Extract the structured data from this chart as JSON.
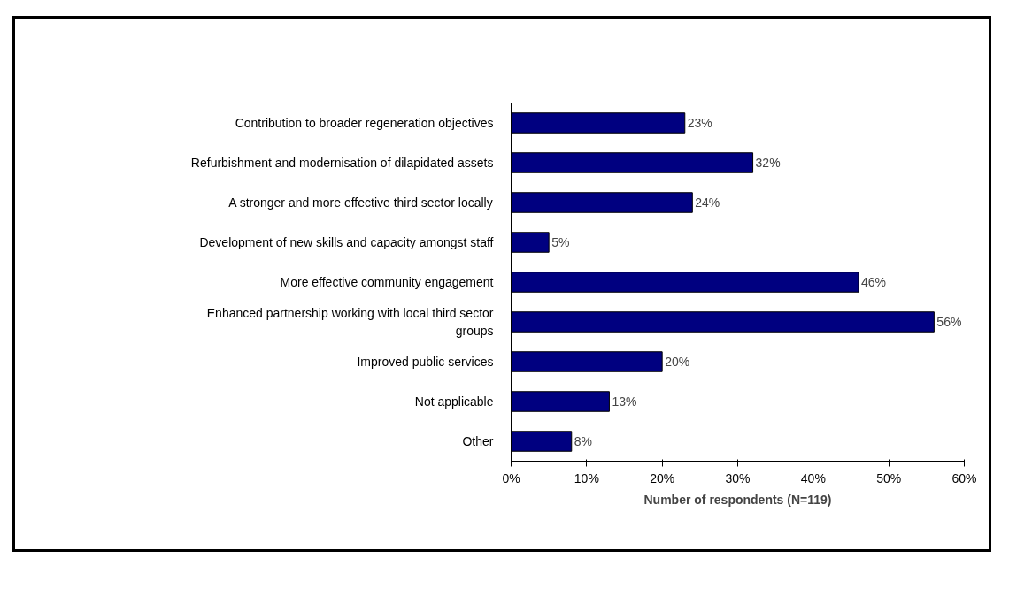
{
  "chart_data": {
    "type": "bar",
    "orientation": "horizontal",
    "categories": [
      "Contribution to broader regeneration objectives",
      "Refurbishment and modernisation of dilapidated assets",
      "A stronger and more effective third sector locally",
      "Development of new skills and capacity amongst staff",
      "More effective community engagement",
      "Enhanced partnership working with local third sector groups",
      "Improved public services",
      "Not applicable",
      "Other"
    ],
    "values": [
      23,
      32,
      24,
      5,
      46,
      56,
      20,
      13,
      8
    ],
    "value_labels": [
      "23%",
      "32%",
      "24%",
      "5%",
      "46%",
      "56%",
      "20%",
      "13%",
      "8%"
    ],
    "color": "#000080",
    "xlabel": "Number of respondents (N=119)",
    "xlim": [
      0,
      60
    ],
    "xticks": [
      {
        "value": 0,
        "label": "0%"
      },
      {
        "value": 10,
        "label": "10%"
      },
      {
        "value": 20,
        "label": "20%"
      },
      {
        "value": 30,
        "label": "30%"
      },
      {
        "value": 40,
        "label": "40%"
      },
      {
        "value": 50,
        "label": "50%"
      },
      {
        "value": 60,
        "label": "60%"
      }
    ],
    "grid": false
  }
}
